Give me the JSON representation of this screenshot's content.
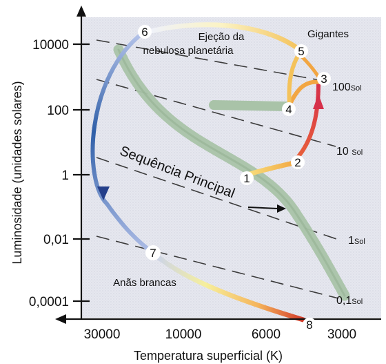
{
  "axes": {
    "y_title": "Luminosidade (unidades solares)",
    "x_title": "Temperatura superficial (K)",
    "y_ticks": [
      "10000",
      "100",
      "1",
      "0,01",
      "0,0001"
    ],
    "x_ticks": [
      "30000",
      "10000",
      "6000",
      "3000"
    ],
    "y_scale": "log",
    "x_direction": "decreasing to the right"
  },
  "regions": {
    "ejection_line1": "Ejeção da",
    "ejection_line2": "nebulosa planetária",
    "giants": "Gigantes",
    "main_sequence": "Sequência Principal",
    "white_dwarfs": "Anãs brancas"
  },
  "radius_lines": [
    {
      "value": "100",
      "unit": "Sol"
    },
    {
      "value": "10 ",
      "unit": "Sol"
    },
    {
      "value": "1",
      "unit": "Sol"
    },
    {
      "value": "0,1",
      "unit": "Sol"
    }
  ],
  "stages": [
    "1",
    "2",
    "3",
    "4",
    "5",
    "6",
    "7",
    "8"
  ],
  "colors": {
    "background": "#e8e9f0",
    "main_sequence_band": "#a9c3a8",
    "red_giant_track": "#d63a4a",
    "orange_track": "#f2a642",
    "yellow_track": "#f7dc7a",
    "white_dwarf_track": "#2f5fa8",
    "cooling_track_end": "#d23a2a"
  }
}
